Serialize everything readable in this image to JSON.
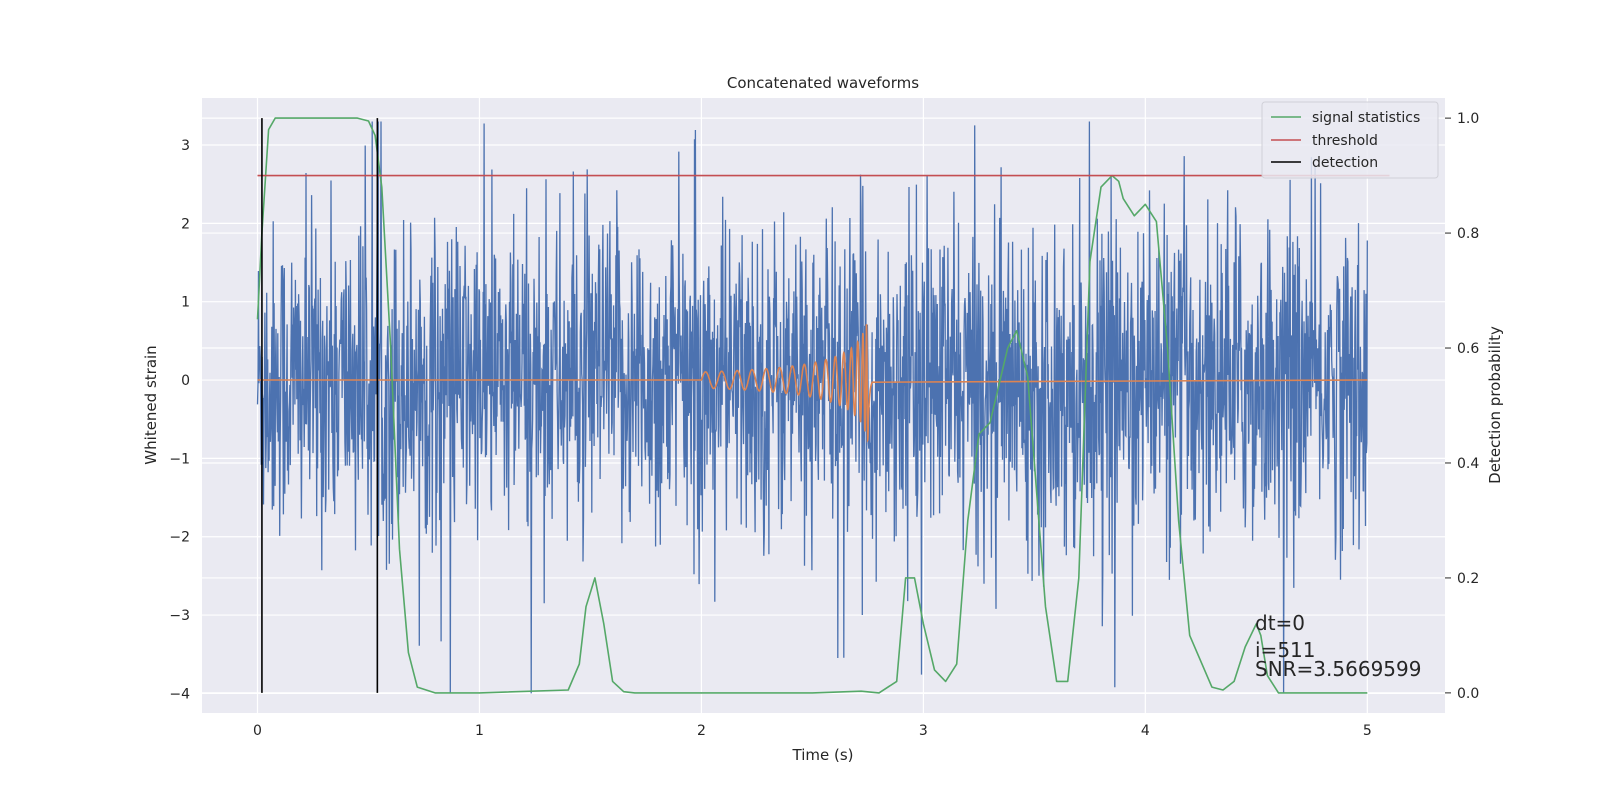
{
  "chart_data": {
    "type": "line",
    "title": "Concatenated waveforms",
    "xlabel": "Time (s)",
    "ylabel": "Whitened strain",
    "ylabel_right": "Detection probability",
    "xlim": [
      -0.25,
      5.35
    ],
    "ylim": [
      -4.25,
      3.6
    ],
    "ylim_right": [
      -0.035,
      1.035
    ],
    "xticks": [
      0,
      1,
      2,
      3,
      4,
      5
    ],
    "yticks": [
      -4,
      -3,
      -2,
      -1,
      0,
      1,
      2,
      3
    ],
    "yticks_right": [
      0.0,
      0.2,
      0.4,
      0.6,
      0.8,
      1.0
    ],
    "grid": true,
    "legend_position": "top-right",
    "legend": [
      "signal statistics",
      "threshold",
      "detection"
    ],
    "colors": {
      "strain": "#4c72b0",
      "template": "#dd8452",
      "signal_statistics": "#55a868",
      "threshold": "#c44e52",
      "detection": "#000000",
      "background": "#eaeaf2"
    },
    "series": [
      {
        "axis": "left",
        "role": "whitened-strain-noise",
        "x_range": [
          0,
          5
        ],
        "envelope": {
          "typical": 1.0,
          "max": 3.3,
          "min": -4.0
        }
      },
      {
        "axis": "left",
        "role": "injected-waveform",
        "x_start": 2.0,
        "x_merger": 2.75,
        "x_end": 5.0,
        "amplitude_start": 0.05,
        "amplitude_peak": 0.8
      },
      {
        "name": "signal statistics",
        "axis": "right",
        "x": [
          0.0,
          0.02,
          0.05,
          0.08,
          0.15,
          0.3,
          0.45,
          0.5,
          0.53,
          0.56,
          0.6,
          0.64,
          0.68,
          0.72,
          0.8,
          1.0,
          1.4,
          1.45,
          1.48,
          1.52,
          1.56,
          1.6,
          1.65,
          1.7,
          2.0,
          2.5,
          2.72,
          2.8,
          2.88,
          2.92,
          2.96,
          3.0,
          3.05,
          3.1,
          3.15,
          3.2,
          3.25,
          3.3,
          3.38,
          3.42,
          3.47,
          3.55,
          3.6,
          3.65,
          3.7,
          3.75,
          3.8,
          3.85,
          3.88,
          3.9,
          3.95,
          4.0,
          4.05,
          4.1,
          4.15,
          4.2,
          4.3,
          4.35,
          4.4,
          4.45,
          4.5,
          4.52,
          4.55,
          4.6,
          4.7,
          5.0
        ],
        "values": [
          0.65,
          0.8,
          0.98,
          1.0,
          1.0,
          1.0,
          1.0,
          0.995,
          0.97,
          0.88,
          0.6,
          0.25,
          0.07,
          0.01,
          0.0,
          0.0,
          0.005,
          0.05,
          0.15,
          0.2,
          0.12,
          0.02,
          0.002,
          0.0,
          0.0,
          0.0,
          0.003,
          0.0,
          0.02,
          0.2,
          0.2,
          0.12,
          0.04,
          0.02,
          0.05,
          0.3,
          0.45,
          0.47,
          0.6,
          0.63,
          0.55,
          0.15,
          0.02,
          0.02,
          0.2,
          0.75,
          0.88,
          0.9,
          0.89,
          0.86,
          0.83,
          0.85,
          0.82,
          0.6,
          0.3,
          0.1,
          0.01,
          0.005,
          0.02,
          0.08,
          0.12,
          0.1,
          0.03,
          0.0,
          0.0,
          0.0
        ]
      },
      {
        "name": "threshold",
        "axis": "right",
        "x": [
          0.0,
          5.1
        ],
        "values": [
          0.9,
          0.9
        ]
      },
      {
        "name": "detection",
        "axis": "right",
        "type": "vlines",
        "x": [
          0.02,
          0.54
        ],
        "ymin": 0.0,
        "ymax": 1.0
      }
    ],
    "annotations": [
      "dt=0",
      "i=511",
      "SNR=3.5669599"
    ]
  }
}
